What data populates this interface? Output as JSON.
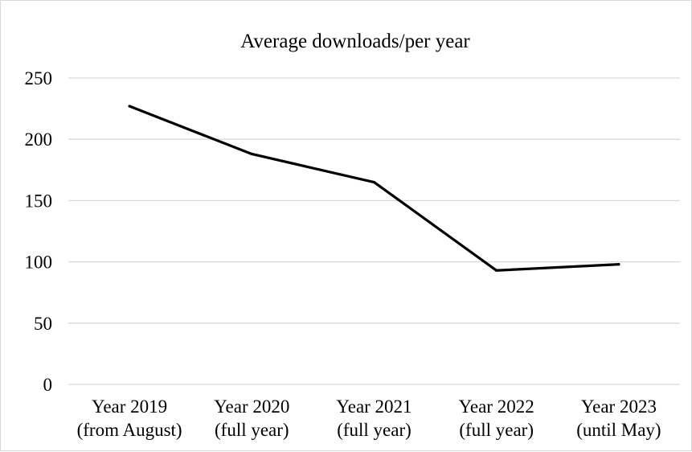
{
  "chart_data": {
    "type": "line",
    "title": "Average downloads/per year",
    "xlabel": "",
    "ylabel": "",
    "categories": [
      [
        "Year 2019",
        "(from August)"
      ],
      [
        "Year 2020",
        "(full year)"
      ],
      [
        "Year 2021",
        "(full year)"
      ],
      [
        "Year 2022",
        "(full year)"
      ],
      [
        "Year 2023",
        "(until May)"
      ]
    ],
    "values": [
      227,
      188,
      165,
      93,
      98
    ],
    "ylim": [
      0,
      250
    ],
    "yticks": [
      "0",
      "50",
      "100",
      "150",
      "200",
      "250"
    ],
    "grid": true,
    "legend": "none",
    "colors": {
      "line": "#000000",
      "grid": "#d9d9d9",
      "axis": "#d9d9d9"
    }
  }
}
